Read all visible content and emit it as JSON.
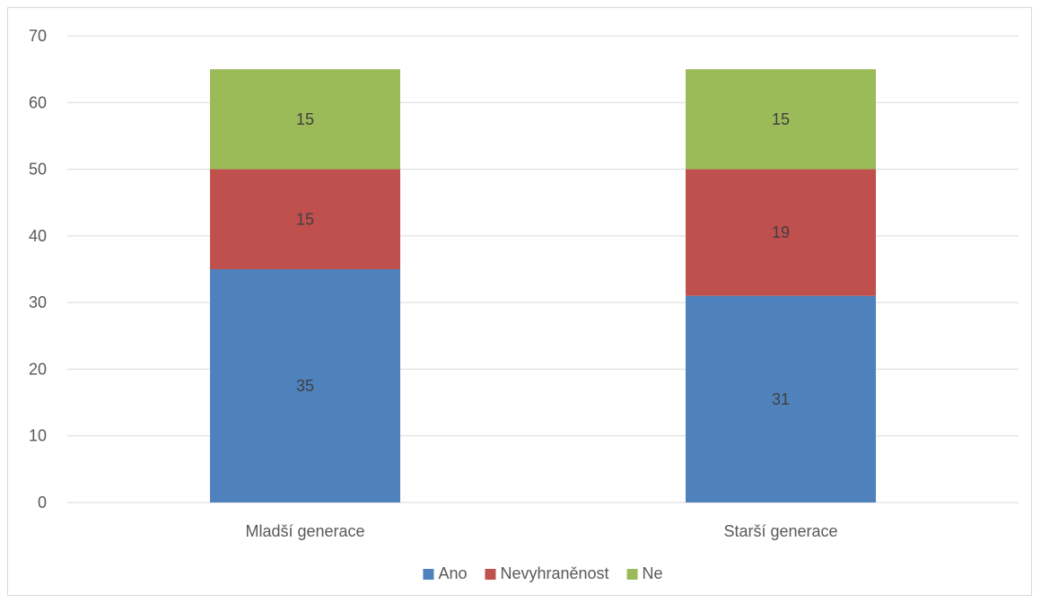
{
  "chart_data": {
    "type": "bar",
    "stacked": true,
    "categories": [
      "Mladší generace",
      "Starší generace"
    ],
    "series": [
      {
        "name": "Ano",
        "values": [
          35,
          31
        ],
        "color": "#4f81bd"
      },
      {
        "name": "Nevyhraněnost",
        "values": [
          15,
          19
        ],
        "color": "#c0504d"
      },
      {
        "name": "Ne",
        "values": [
          15,
          15
        ],
        "color": "#9bbb59"
      }
    ],
    "title": "",
    "xlabel": "",
    "ylabel": "",
    "ylim": [
      0,
      70
    ],
    "yticks": [
      0,
      10,
      20,
      30,
      40,
      50,
      60,
      70
    ],
    "grid": true,
    "legend": "bottom",
    "data_labels": true
  }
}
